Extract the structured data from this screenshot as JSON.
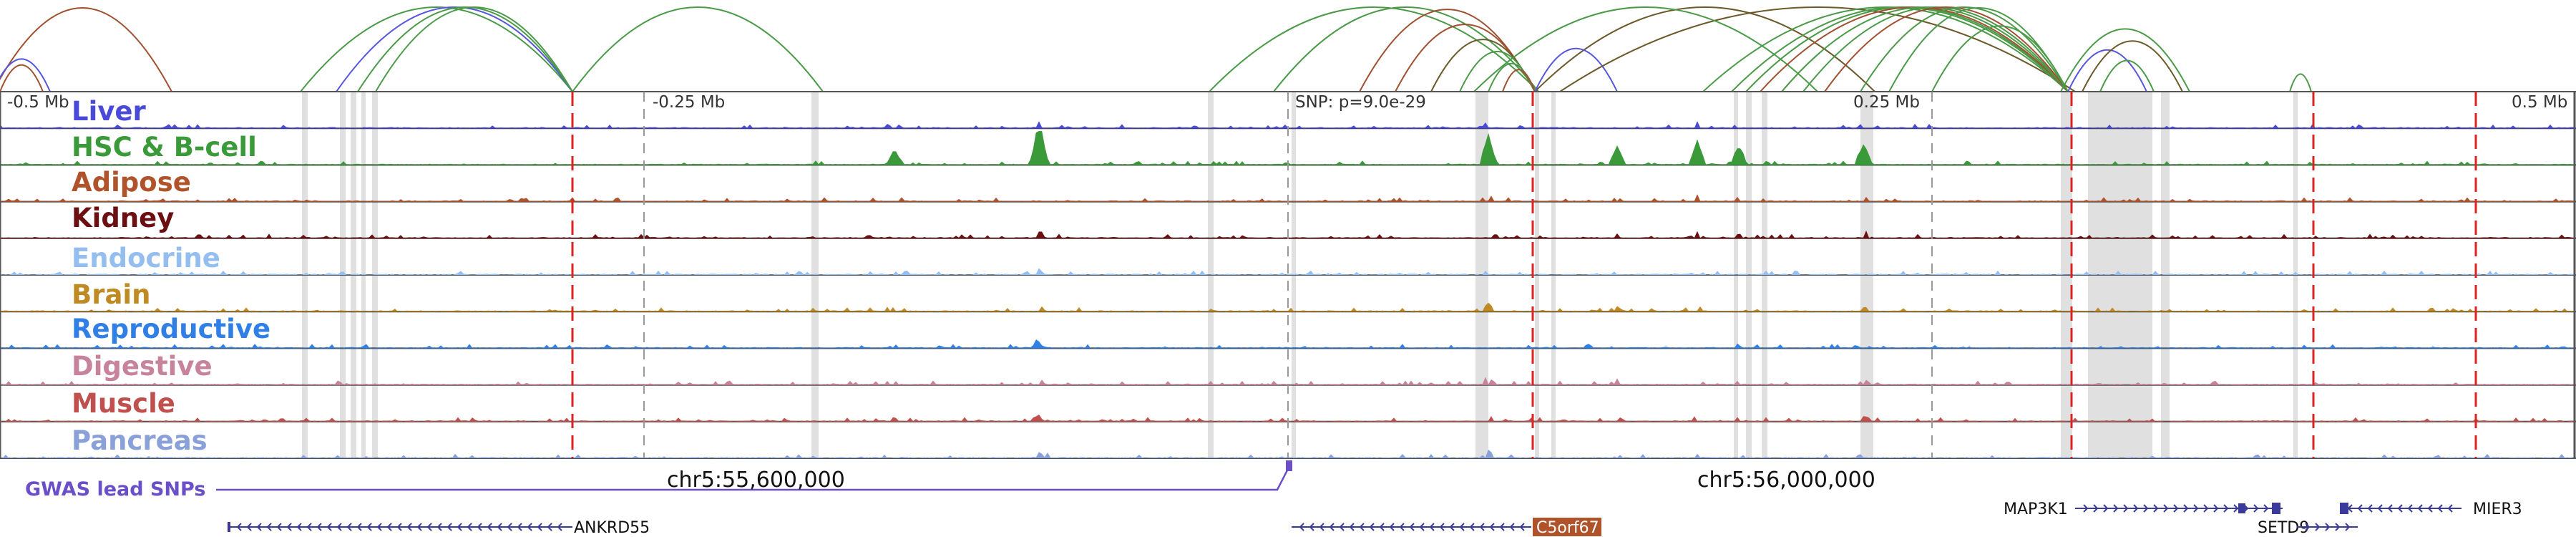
{
  "colors": {
    "link_green": "#4a9a48",
    "link_blue": "#5555dd",
    "link_brown": "#a05030",
    "link_dark": "#6b5a2a",
    "highlight": "#d6d6d6",
    "red_marker": "#dd2222",
    "gwas": "#6a4fc8",
    "gene": "#3a3a9a"
  },
  "ruler": {
    "ticks": [
      {
        "label": "-0.5 Mb"
      },
      {
        "label": "-0.25 Mb"
      },
      {
        "label": "SNP: p=9.0e-29"
      },
      {
        "label": "0.25 Mb"
      },
      {
        "label": "0.5 Mb"
      }
    ]
  },
  "tracks": [
    {
      "name": "Liver",
      "color": "#4a4ad8"
    },
    {
      "name": "HSC & B-cell",
      "color": "#3a9a3a"
    },
    {
      "name": "Adipose",
      "color": "#b0522a"
    },
    {
      "name": "Kidney",
      "color": "#6b0f12"
    },
    {
      "name": "Endocrine",
      "color": "#94bdf0"
    },
    {
      "name": "Brain",
      "color": "#c08a22"
    },
    {
      "name": "Reproductive",
      "color": "#2f7fe6"
    },
    {
      "name": "Digestive",
      "color": "#c8839c"
    },
    {
      "name": "Muscle",
      "color": "#c0504d"
    },
    {
      "name": "Pancreas",
      "color": "#8aa0d8"
    }
  ],
  "gwas": {
    "label": "GWAS lead SNPs"
  },
  "coordinates": {
    "left": "chr5:55,600,000",
    "right": "chr5:56,000,000"
  },
  "genes": [
    {
      "name": "ANKRD55",
      "strand": "-"
    },
    {
      "name": "C5orf67",
      "strand": "-",
      "highlighted": true,
      "highlight_color": "#b0522a"
    },
    {
      "name": "MAP3K1",
      "strand": "+"
    },
    {
      "name": "SETD9",
      "strand": "+"
    },
    {
      "name": "MIER3",
      "strand": "-"
    }
  ]
}
